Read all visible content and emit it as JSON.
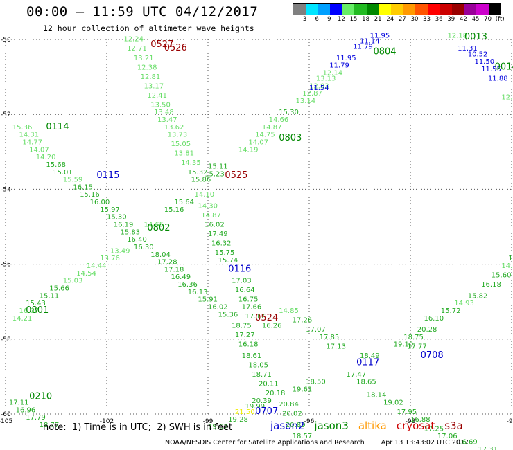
{
  "header": {
    "title": "00:00 – 11:59 UTC 04/12/2017",
    "subtitle": "12 hour collection of altimeter wave heights"
  },
  "color_scale": {
    "ticks": [
      "3",
      "6",
      "9",
      "12",
      "15",
      "18",
      "21",
      "24",
      "27",
      "30",
      "33",
      "36",
      "39",
      "42",
      "45",
      "70",
      "(ft)"
    ],
    "colors": [
      "#808080",
      "#00e5ff",
      "#00a0ff",
      "#0000ff",
      "#66ee66",
      "#22bb22",
      "#008800",
      "#ffff00",
      "#ffcc00",
      "#ff9900",
      "#ff5500",
      "#ff0000",
      "#cc0000",
      "#990000",
      "#990099",
      "#cc00cc",
      "#000000"
    ]
  },
  "chart_data": {
    "type": "scatter",
    "description_axes": {
      "x_ticks": [
        "-105",
        "-102",
        "-99",
        "-96",
        "-93",
        "-90"
      ],
      "y_ticks": [
        "-50",
        "-52",
        "-54",
        "-56",
        "-58",
        "-60"
      ],
      "xlim": [
        -105,
        -90
      ],
      "ylim": [
        -60,
        -50
      ],
      "grid": true
    },
    "passes": [
      {
        "id": "0527",
        "sat": "cryosat",
        "x": -100.7,
        "y": -50.2
      },
      {
        "id": "0526",
        "sat": "cryosat",
        "x": -100.3,
        "y": -50.3
      },
      {
        "id": "0525",
        "sat": "cryosat",
        "x": -98.5,
        "y": -53.7
      },
      {
        "id": "0524",
        "sat": "cryosat",
        "x": -97.6,
        "y": -57.5
      },
      {
        "id": "0013",
        "sat": "jason3",
        "x": -91.4,
        "y": -50.0
      },
      {
        "id": "0014",
        "sat": "jason3",
        "x": -90.5,
        "y": -50.8
      },
      {
        "id": "0804",
        "sat": "jason3",
        "x": -94.1,
        "y": -50.4
      },
      {
        "id": "0803",
        "sat": "jason3",
        "x": -96.9,
        "y": -52.7
      },
      {
        "id": "0802",
        "sat": "jason3",
        "x": -100.8,
        "y": -55.1
      },
      {
        "id": "0801",
        "sat": "jason3",
        "x": -104.4,
        "y": -57.3
      },
      {
        "id": "0114",
        "sat": "jason3",
        "x": -103.8,
        "y": -52.4
      },
      {
        "id": "0210",
        "sat": "jason3",
        "x": -104.3,
        "y": -59.6
      },
      {
        "id": "0115",
        "sat": "jason2",
        "x": -102.3,
        "y": -53.7
      },
      {
        "id": "0116",
        "sat": "jason2",
        "x": -98.4,
        "y": -56.2
      },
      {
        "id": "0117",
        "sat": "jason2",
        "x": -94.6,
        "y": -58.7
      },
      {
        "id": "0708",
        "sat": "jason2",
        "x": -92.7,
        "y": -58.5
      },
      {
        "id": "0707",
        "sat": "jason2",
        "x": -97.6,
        "y": -60.0
      }
    ],
    "track_labels": [
      {
        "t": "12.24",
        "x": -101.5,
        "y": -50.05,
        "c": 1
      },
      {
        "t": "12.71",
        "x": -101.4,
        "y": -50.3,
        "c": 1
      },
      {
        "t": "13.21",
        "x": -101.2,
        "y": -50.55,
        "c": 1
      },
      {
        "t": "12.38",
        "x": -101.1,
        "y": -50.8,
        "c": 1
      },
      {
        "t": "12.81",
        "x": -101.0,
        "y": -51.05,
        "c": 1
      },
      {
        "t": "13.17",
        "x": -100.9,
        "y": -51.3,
        "c": 1
      },
      {
        "t": "12.41",
        "x": -100.8,
        "y": -51.55,
        "c": 1
      },
      {
        "t": "13.50",
        "x": -100.7,
        "y": -51.8,
        "c": 1
      },
      {
        "t": "13.48",
        "x": -100.6,
        "y": -52.0,
        "c": 1
      },
      {
        "t": "13.47",
        "x": -100.5,
        "y": -52.2,
        "c": 1
      },
      {
        "t": "13.62",
        "x": -100.3,
        "y": -52.4,
        "c": 1
      },
      {
        "t": "13.73",
        "x": -100.2,
        "y": -52.6,
        "c": 1
      },
      {
        "t": "15.05",
        "x": -100.1,
        "y": -52.85,
        "c": 1
      },
      {
        "t": "13.81",
        "x": -100.0,
        "y": -53.1,
        "c": 1
      },
      {
        "t": "14.35",
        "x": -99.8,
        "y": -53.35,
        "c": 1
      },
      {
        "t": "15.32",
        "x": -99.6,
        "y": -53.6,
        "c": 2
      },
      {
        "t": "15.86",
        "x": -99.5,
        "y": -53.8,
        "c": 2
      },
      {
        "t": "14.10",
        "x": -99.4,
        "y": -54.2,
        "c": 1
      },
      {
        "t": "14.30",
        "x": -99.3,
        "y": -54.5,
        "c": 1
      },
      {
        "t": "14.87",
        "x": -99.2,
        "y": -54.75,
        "c": 1
      },
      {
        "t": "16.02",
        "x": -99.1,
        "y": -55.0,
        "c": 2
      },
      {
        "t": "17.49",
        "x": -99.0,
        "y": -55.25,
        "c": 2
      },
      {
        "t": "16.32",
        "x": -98.9,
        "y": -55.5,
        "c": 2
      },
      {
        "t": "15.75",
        "x": -98.8,
        "y": -55.75,
        "c": 2
      },
      {
        "t": "15.74",
        "x": -98.7,
        "y": -55.95,
        "c": 2
      },
      {
        "t": "17.03",
        "x": -98.3,
        "y": -56.5,
        "c": 2
      },
      {
        "t": "16.64",
        "x": -98.2,
        "y": -56.75,
        "c": 2
      },
      {
        "t": "16.75",
        "x": -98.1,
        "y": -57.0,
        "c": 2
      },
      {
        "t": "17.66",
        "x": -98.0,
        "y": -57.2,
        "c": 2
      },
      {
        "t": "17.17",
        "x": -97.9,
        "y": -57.45,
        "c": 2
      },
      {
        "t": "16.26",
        "x": -97.4,
        "y": -57.7,
        "c": 2
      },
      {
        "t": "18.75",
        "x": -98.3,
        "y": -57.7,
        "c": 2
      },
      {
        "t": "17.27",
        "x": -98.2,
        "y": -57.95,
        "c": 2
      },
      {
        "t": "16.18",
        "x": -98.1,
        "y": -58.2,
        "c": 2
      },
      {
        "t": "18.61",
        "x": -98.0,
        "y": -58.5,
        "c": 2
      },
      {
        "t": "18.05",
        "x": -97.8,
        "y": -58.75,
        "c": 2
      },
      {
        "t": "18.71",
        "x": -97.7,
        "y": -59.0,
        "c": 2
      },
      {
        "t": "20.11",
        "x": -97.5,
        "y": -59.25,
        "c": 2
      },
      {
        "t": "20.18",
        "x": -97.3,
        "y": -59.5,
        "c": 2
      },
      {
        "t": "20.39",
        "x": -97.7,
        "y": -59.7,
        "c": 2
      },
      {
        "t": "19.99",
        "x": -97.9,
        "y": -59.85,
        "c": 2
      },
      {
        "t": "21.50",
        "x": -98.2,
        "y": -60.0,
        "c": 4
      },
      {
        "t": "19.28",
        "x": -98.4,
        "y": -60.2,
        "c": 2
      },
      {
        "t": "19.67",
        "x": -99.0,
        "y": -60.4,
        "c": 2
      },
      {
        "t": "20.02",
        "x": -96.8,
        "y": -60.05,
        "c": 2
      },
      {
        "t": "20.89",
        "x": -96.7,
        "y": -60.35,
        "c": 2
      },
      {
        "t": "18.57",
        "x": -96.5,
        "y": -60.65,
        "c": 2
      },
      {
        "t": "15.36",
        "x": -104.8,
        "y": -52.4,
        "c": 1
      },
      {
        "t": "14.31",
        "x": -104.6,
        "y": -52.6,
        "c": 1
      },
      {
        "t": "14.77",
        "x": -104.5,
        "y": -52.8,
        "c": 1
      },
      {
        "t": "14.07",
        "x": -104.3,
        "y": -53.0,
        "c": 1
      },
      {
        "t": "14.20",
        "x": -104.1,
        "y": -53.2,
        "c": 1
      },
      {
        "t": "15.68",
        "x": -103.8,
        "y": -53.4,
        "c": 2
      },
      {
        "t": "15.01",
        "x": -103.6,
        "y": -53.6,
        "c": 2
      },
      {
        "t": "15.59",
        "x": -103.3,
        "y": -53.8,
        "c": 1
      },
      {
        "t": "16.15",
        "x": -103.0,
        "y": -54.0,
        "c": 2
      },
      {
        "t": "15.16",
        "x": -102.8,
        "y": -54.2,
        "c": 2
      },
      {
        "t": "16.00",
        "x": -102.5,
        "y": -54.4,
        "c": 2
      },
      {
        "t": "15.97",
        "x": -102.2,
        "y": -54.6,
        "c": 2
      },
      {
        "t": "15.30",
        "x": -102.0,
        "y": -54.8,
        "c": 2
      },
      {
        "t": "16.19",
        "x": -101.8,
        "y": -55.0,
        "c": 2
      },
      {
        "t": "15.83",
        "x": -101.6,
        "y": -55.2,
        "c": 2
      },
      {
        "t": "16.40",
        "x": -101.4,
        "y": -55.4,
        "c": 2
      },
      {
        "t": "16.30",
        "x": -101.2,
        "y": -55.6,
        "c": 2
      },
      {
        "t": "18.04",
        "x": -100.7,
        "y": -55.8,
        "c": 2
      },
      {
        "t": "17.28",
        "x": -100.5,
        "y": -56.0,
        "c": 2
      },
      {
        "t": "17.18",
        "x": -100.3,
        "y": -56.2,
        "c": 2
      },
      {
        "t": "16.49",
        "x": -100.1,
        "y": -56.4,
        "c": 2
      },
      {
        "t": "16.36",
        "x": -99.9,
        "y": -56.6,
        "c": 2
      },
      {
        "t": "16.13",
        "x": -99.6,
        "y": -56.8,
        "c": 2
      },
      {
        "t": "15.91",
        "x": -99.3,
        "y": -57.0,
        "c": 2
      },
      {
        "t": "16.02",
        "x": -99.0,
        "y": -57.2,
        "c": 2
      },
      {
        "t": "15.36",
        "x": -98.7,
        "y": -57.4,
        "c": 2
      },
      {
        "t": "14.21",
        "x": -104.8,
        "y": -57.5,
        "c": 1
      },
      {
        "t": "16.07",
        "x": -104.6,
        "y": -57.3,
        "c": 1
      },
      {
        "t": "15.43",
        "x": -104.4,
        "y": -57.1,
        "c": 2
      },
      {
        "t": "15.11",
        "x": -104.0,
        "y": -56.9,
        "c": 2
      },
      {
        "t": "15.66",
        "x": -103.7,
        "y": -56.7,
        "c": 2
      },
      {
        "t": "15.03",
        "x": -103.3,
        "y": -56.5,
        "c": 1
      },
      {
        "t": "14.54",
        "x": -102.9,
        "y": -56.3,
        "c": 1
      },
      {
        "t": "14.44",
        "x": -102.6,
        "y": -56.1,
        "c": 1
      },
      {
        "t": "13.76",
        "x": -102.2,
        "y": -55.9,
        "c": 1
      },
      {
        "t": "13.49",
        "x": -101.9,
        "y": -55.7,
        "c": 1
      },
      {
        "t": "14.65",
        "x": -100.9,
        "y": -55.0,
        "c": 1
      },
      {
        "t": "15.16",
        "x": -100.3,
        "y": -54.6,
        "c": 2
      },
      {
        "t": "15.64",
        "x": -100.0,
        "y": -54.4,
        "c": 2
      },
      {
        "t": "15.11",
        "x": -99.0,
        "y": -53.45,
        "c": 2
      },
      {
        "t": "15.23",
        "x": -99.1,
        "y": -53.65,
        "c": 2
      },
      {
        "t": "14.19",
        "x": -98.1,
        "y": -53.0,
        "c": 1
      },
      {
        "t": "14.07",
        "x": -97.8,
        "y": -52.8,
        "c": 1
      },
      {
        "t": "14.75",
        "x": -97.6,
        "y": -52.6,
        "c": 1
      },
      {
        "t": "14.87",
        "x": -97.4,
        "y": -52.4,
        "c": 1
      },
      {
        "t": "14.66",
        "x": -97.2,
        "y": -52.2,
        "c": 1
      },
      {
        "t": "15.30",
        "x": -96.9,
        "y": -52.0,
        "c": 2
      },
      {
        "t": "13.14",
        "x": -96.4,
        "y": -51.7,
        "c": 1
      },
      {
        "t": "12.87",
        "x": -96.2,
        "y": -51.5,
        "c": 1
      },
      {
        "t": "12.83",
        "x": -96.0,
        "y": -51.3,
        "c": 1
      },
      {
        "t": "13.13",
        "x": -95.8,
        "y": -51.1,
        "c": 1
      },
      {
        "t": "12.14",
        "x": -95.6,
        "y": -50.95,
        "c": 1
      },
      {
        "t": "11.54",
        "x": -96.0,
        "y": -51.35,
        "c": 3
      },
      {
        "t": "11.79",
        "x": -95.4,
        "y": -50.75,
        "c": 3
      },
      {
        "t": "11.95",
        "x": -95.2,
        "y": -50.55,
        "c": 3
      },
      {
        "t": "11.79",
        "x": -94.7,
        "y": -50.25,
        "c": 3
      },
      {
        "t": "11.14",
        "x": -94.5,
        "y": -50.1,
        "c": 3
      },
      {
        "t": "11.95",
        "x": -94.2,
        "y": -49.95,
        "c": 3
      },
      {
        "t": "12.18",
        "x": -91.9,
        "y": -49.95,
        "c": 1
      },
      {
        "t": "11.31",
        "x": -91.6,
        "y": -50.3,
        "c": 3
      },
      {
        "t": "10.52",
        "x": -91.3,
        "y": -50.45,
        "c": 3
      },
      {
        "t": "11.50",
        "x": -91.1,
        "y": -50.65,
        "c": 3
      },
      {
        "t": "11.55",
        "x": -90.9,
        "y": -50.85,
        "c": 3
      },
      {
        "t": "11.88",
        "x": -90.7,
        "y": -51.1,
        "c": 3
      },
      {
        "t": "12.61",
        "x": -90.3,
        "y": -51.6,
        "c": 1
      },
      {
        "t": "18.50",
        "x": -96.1,
        "y": -59.2,
        "c": 2
      },
      {
        "t": "19.61",
        "x": -96.5,
        "y": -59.4,
        "c": 2
      },
      {
        "t": "20.84",
        "x": -96.9,
        "y": -59.8,
        "c": 2
      },
      {
        "t": "17.47",
        "x": -94.9,
        "y": -59.0,
        "c": 2
      },
      {
        "t": "18.65",
        "x": -94.6,
        "y": -59.2,
        "c": 2
      },
      {
        "t": "18.14",
        "x": -94.3,
        "y": -59.55,
        "c": 2
      },
      {
        "t": "19.02",
        "x": -93.8,
        "y": -59.75,
        "c": 2
      },
      {
        "t": "17.95",
        "x": -93.4,
        "y": -60.0,
        "c": 2
      },
      {
        "t": "16.88",
        "x": -93.0,
        "y": -60.2,
        "c": 2
      },
      {
        "t": "17.25",
        "x": -92.6,
        "y": -60.45,
        "c": 2
      },
      {
        "t": "17.06",
        "x": -92.2,
        "y": -60.65,
        "c": 2
      },
      {
        "t": "16.69",
        "x": -91.6,
        "y": -60.8,
        "c": 2
      },
      {
        "t": "17.31",
        "x": -91.0,
        "y": -61.0,
        "c": 2
      },
      {
        "t": "19.10",
        "x": -93.5,
        "y": -58.2,
        "c": 2
      },
      {
        "t": "18.75",
        "x": -93.2,
        "y": -58.0,
        "c": 2
      },
      {
        "t": "20.28",
        "x": -92.8,
        "y": -57.8,
        "c": 2
      },
      {
        "t": "16.10",
        "x": -92.6,
        "y": -57.5,
        "c": 2
      },
      {
        "t": "15.72",
        "x": -92.1,
        "y": -57.3,
        "c": 2
      },
      {
        "t": "14.93",
        "x": -91.7,
        "y": -57.1,
        "c": 1
      },
      {
        "t": "15.82",
        "x": -91.3,
        "y": -56.9,
        "c": 2
      },
      {
        "t": "16.18",
        "x": -90.9,
        "y": -56.6,
        "c": 2
      },
      {
        "t": "15.60",
        "x": -90.6,
        "y": -56.35,
        "c": 2
      },
      {
        "t": "14.79",
        "x": -90.3,
        "y": -56.1,
        "c": 1
      },
      {
        "t": "15.91",
        "x": -90.1,
        "y": -55.9,
        "c": 2
      },
      {
        "t": "14.63",
        "x": -89.7,
        "y": -55.5,
        "c": 1
      },
      {
        "t": "17.11",
        "x": -104.9,
        "y": -59.75,
        "c": 2
      },
      {
        "t": "16.96",
        "x": -104.7,
        "y": -59.95,
        "c": 2
      },
      {
        "t": "17.79",
        "x": -104.4,
        "y": -60.15,
        "c": 2
      },
      {
        "t": "18.77",
        "x": -104.0,
        "y": -60.35,
        "c": 2
      },
      {
        "t": "17.77",
        "x": -93.1,
        "y": -58.25,
        "c": 2
      },
      {
        "t": "18.49",
        "x": -94.5,
        "y": -58.5,
        "c": 2
      },
      {
        "t": "17.13",
        "x": -95.5,
        "y": -58.25,
        "c": 2
      },
      {
        "t": "17.85",
        "x": -95.7,
        "y": -58.0,
        "c": 2
      },
      {
        "t": "17.07",
        "x": -96.1,
        "y": -57.8,
        "c": 2
      },
      {
        "t": "17.26",
        "x": -96.5,
        "y": -57.55,
        "c": 2
      },
      {
        "t": "14.85",
        "x": -96.9,
        "y": -57.3,
        "c": 1
      }
    ]
  },
  "footer": {
    "note": "note:  1) Time is in UTC;  2) SWH is in feet",
    "satellites": [
      {
        "name": "jason2",
        "color": "#0000cc"
      },
      {
        "name": "jason3",
        "color": "#008800"
      },
      {
        "name": "altika",
        "color": "#ff9900"
      },
      {
        "name": "cryosat",
        "color": "#cc0000"
      },
      {
        "name": "s3a",
        "color": "#990000"
      }
    ],
    "credit": "NOAA/NESDIS Center for Satellite Applications and Research",
    "generated": "Apr 13 13:43:02 UTC 2017"
  }
}
